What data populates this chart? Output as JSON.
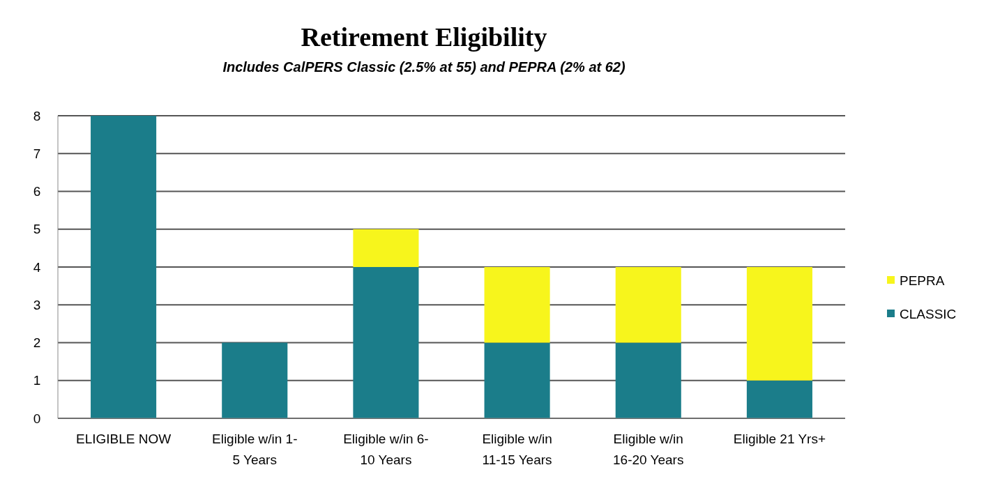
{
  "chart_data": {
    "type": "bar",
    "stacked": true,
    "title": "Retirement Eligibility",
    "subtitle": "Includes CalPERS Classic (2.5% at 55) and PEPRA (2% at 62)",
    "categories": [
      "ELIGIBLE NOW",
      "Eligible w/in 1-5 Years",
      "Eligible w/in 6-10 Years",
      "Eligible w/in 11-15 Years",
      "Eligible w/in 16-20 Years",
      "Eligible 21 Yrs+"
    ],
    "series": [
      {
        "name": "CLASSIC",
        "color": "#1b7d8a",
        "values": [
          8,
          2,
          4,
          2,
          2,
          1
        ]
      },
      {
        "name": "PEPRA",
        "color": "#f7f51c",
        "values": [
          0,
          0,
          1,
          2,
          2,
          3
        ]
      }
    ],
    "ylim": [
      0,
      8
    ],
    "yticks": [
      0,
      1,
      2,
      3,
      4,
      5,
      6,
      7,
      8
    ],
    "grid": "y",
    "legend": "right"
  }
}
